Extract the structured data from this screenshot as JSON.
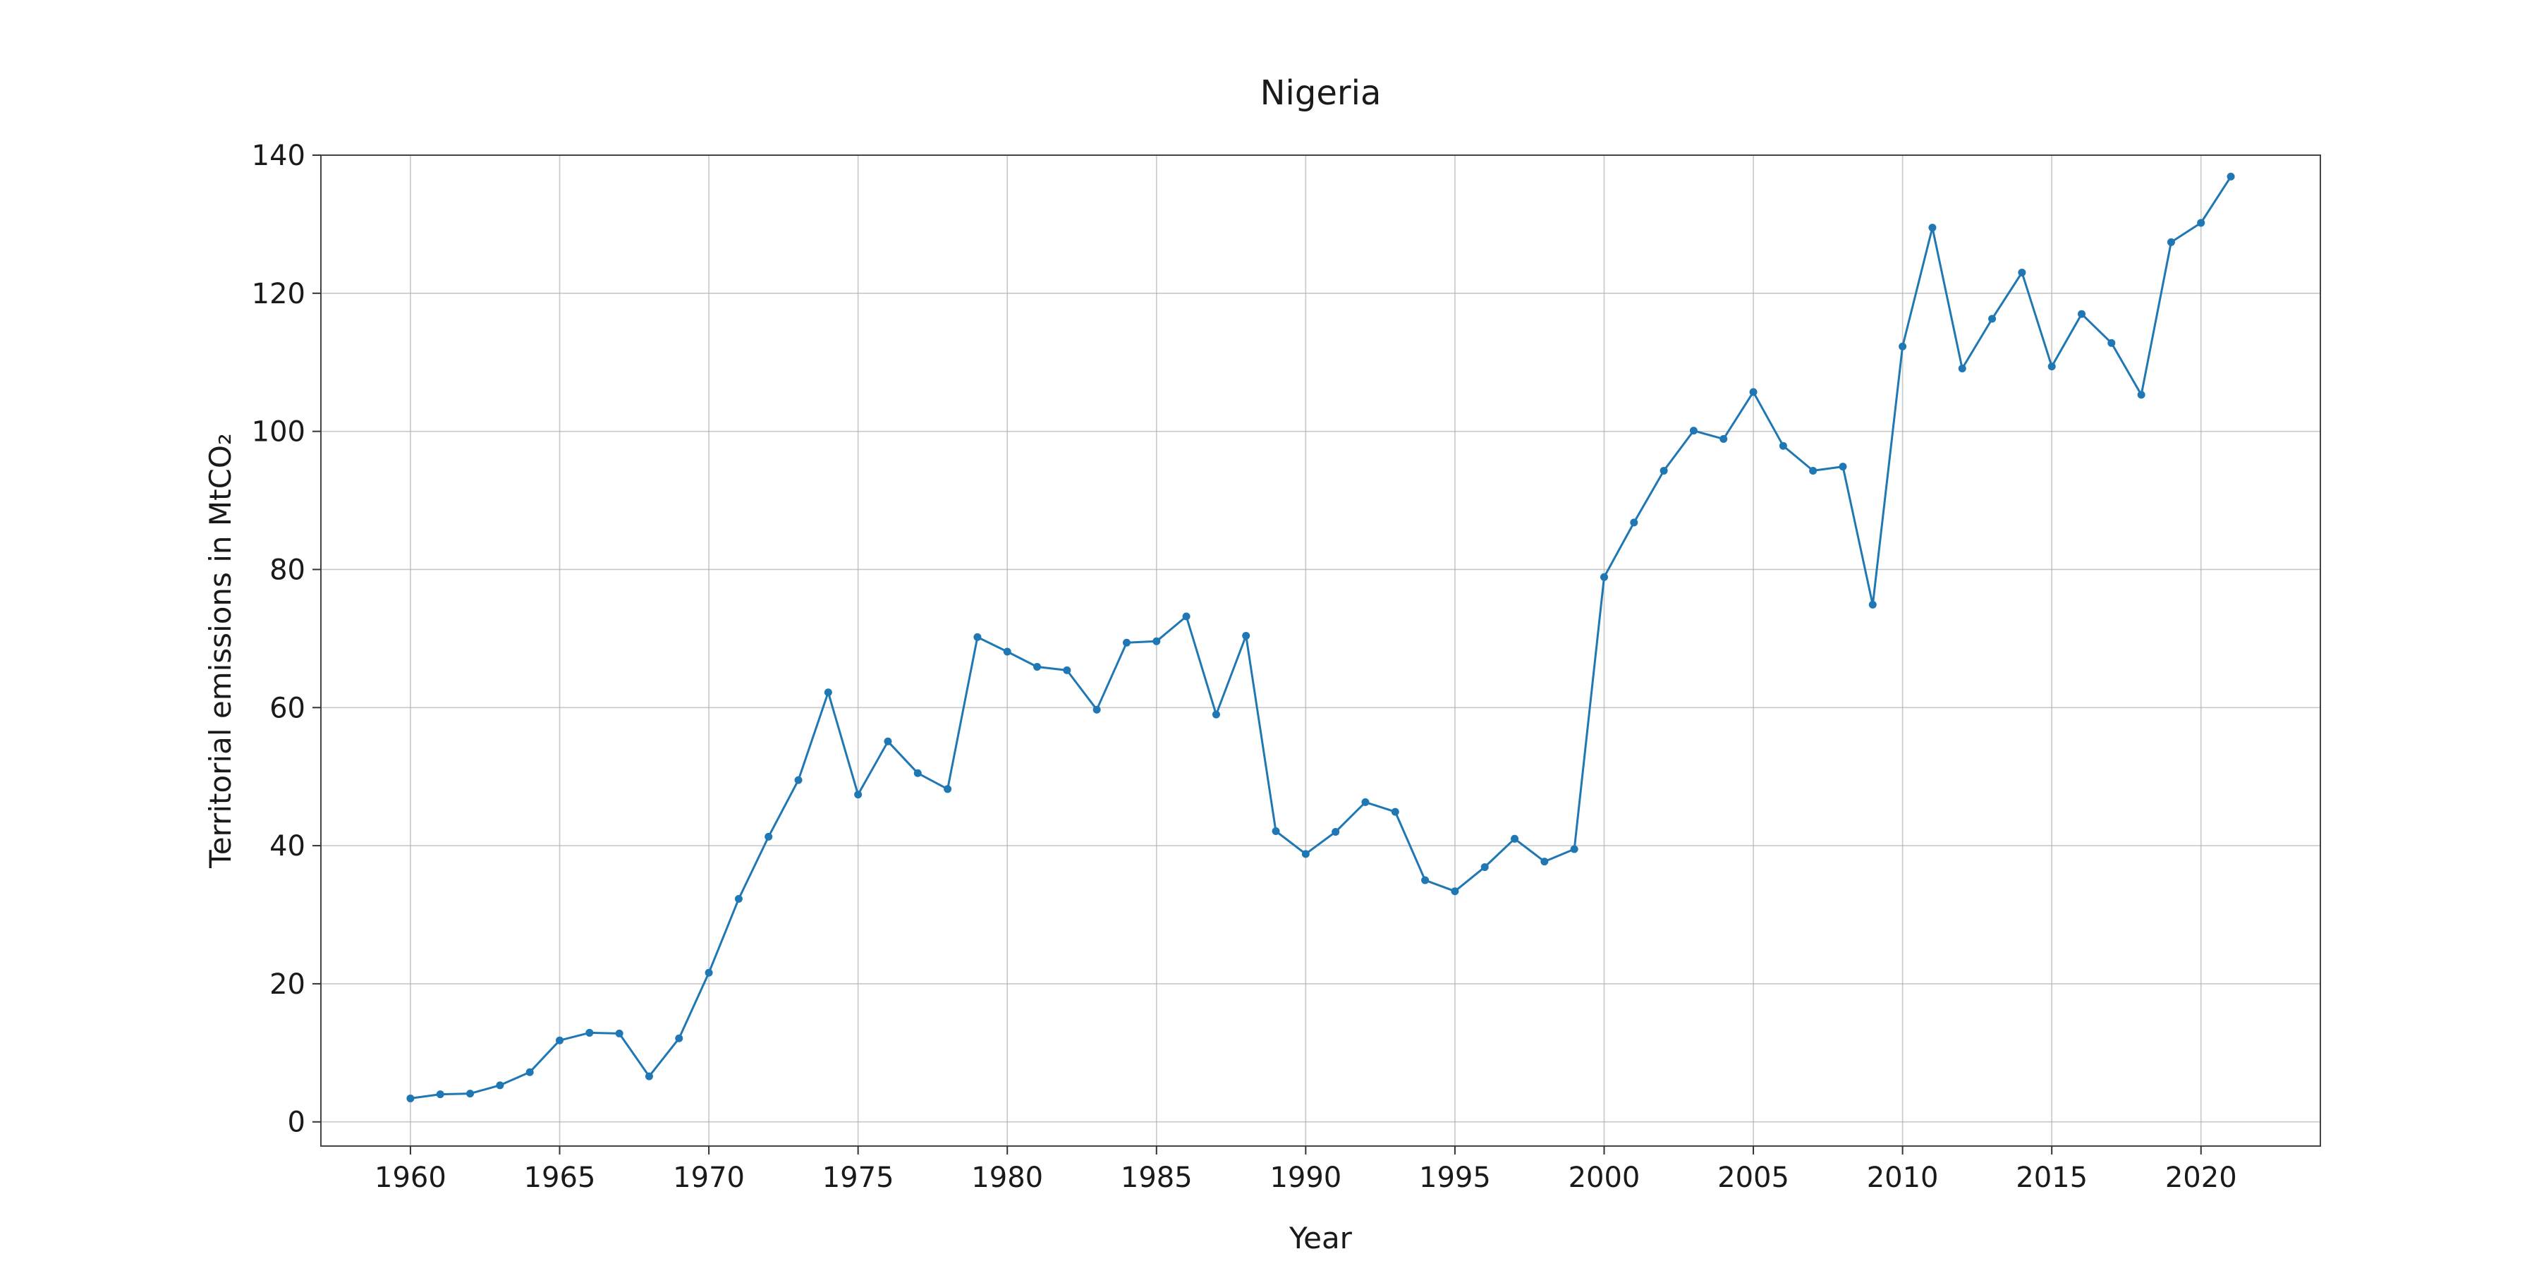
{
  "chart_data": {
    "type": "line",
    "title": "Nigeria",
    "xlabel": "Year",
    "ylabel": "Territorial emissions in MtCO₂",
    "xlim": [
      1957,
      2024
    ],
    "ylim": [
      -3.5,
      140
    ],
    "xticks": [
      1960,
      1965,
      1970,
      1975,
      1980,
      1985,
      1990,
      1995,
      2000,
      2005,
      2010,
      2015,
      2020
    ],
    "yticks": [
      0,
      20,
      40,
      60,
      80,
      100,
      120,
      140
    ],
    "grid": true,
    "color": "#1f77b4",
    "series": [
      {
        "x": [
          1960,
          1961,
          1962,
          1963,
          1964,
          1965,
          1966,
          1967,
          1968,
          1969,
          1970,
          1971,
          1972,
          1973,
          1974,
          1975,
          1976,
          1977,
          1978,
          1979,
          1980,
          1981,
          1982,
          1983,
          1984,
          1985,
          1986,
          1987,
          1988,
          1989,
          1990,
          1991,
          1992,
          1993,
          1994,
          1995,
          1996,
          1997,
          1998,
          1999,
          2000,
          2001,
          2002,
          2003,
          2004,
          2005,
          2006,
          2007,
          2008,
          2009,
          2010,
          2011,
          2012,
          2013,
          2014,
          2015,
          2016,
          2017,
          2018,
          2019,
          2020,
          2021
        ],
        "y": [
          3.4,
          4.0,
          4.1,
          5.3,
          7.2,
          11.8,
          12.9,
          12.8,
          6.6,
          12.1,
          21.6,
          32.3,
          41.3,
          49.5,
          62.2,
          47.4,
          55.1,
          50.5,
          48.2,
          70.2,
          68.1,
          65.9,
          65.4,
          59.7,
          69.4,
          69.6,
          73.2,
          59.0,
          70.4,
          42.1,
          38.8,
          42.0,
          46.3,
          44.9,
          35.0,
          33.4,
          36.9,
          41.0,
          37.7,
          39.5,
          78.9,
          86.8,
          94.3,
          100.1,
          98.9,
          105.7,
          97.9,
          94.3,
          94.9,
          74.9,
          112.3,
          129.5,
          109.1,
          116.3,
          123.0,
          109.4,
          117.0,
          112.8,
          105.3,
          127.4,
          130.2,
          136.9
        ]
      }
    ]
  }
}
